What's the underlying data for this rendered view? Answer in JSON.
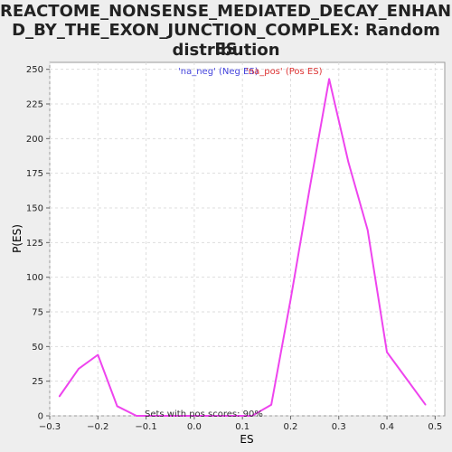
{
  "chart_data": {
    "type": "line",
    "title_line1": "REACTOME_NONSENSE_MEDIATED_DECAY_ENHANCE",
    "title_line2": "D_BY_THE_EXON_JUNCTION_COMPLEX: Random ES",
    "title_line3": "distribution",
    "xlabel": "ES",
    "ylabel": "P(ES)",
    "xlim": [
      -0.3,
      0.52
    ],
    "ylim": [
      0,
      255
    ],
    "x_ticks": [
      -0.3,
      -0.2,
      -0.1,
      0.0,
      0.1,
      0.2,
      0.3,
      0.4,
      0.5
    ],
    "x_tick_labels": [
      "−0.3",
      "−0.2",
      "−0.1",
      "0.0",
      "0.1",
      "0.2",
      "0.3",
      "0.4",
      "0.5"
    ],
    "y_ticks": [
      0,
      25,
      50,
      75,
      100,
      125,
      150,
      175,
      200,
      225,
      250
    ],
    "y_tick_labels": [
      "0",
      "25",
      "50",
      "75",
      "100",
      "125",
      "150",
      "175",
      "200",
      "225",
      "250"
    ],
    "grid": true,
    "legend": [
      {
        "label": "'na_neg' (Neg ES)",
        "color": "#4444dd"
      },
      {
        "label": "'na_pos' (Pos ES)",
        "color": "#dd3333"
      }
    ],
    "annotation": "Sets with pos scores: 90%",
    "series": [
      {
        "color": "#ee44ee",
        "x": [
          -0.28,
          -0.24,
          -0.2,
          -0.16,
          -0.12,
          -0.08,
          -0.04,
          0.0,
          0.04,
          0.08,
          0.12,
          0.16,
          0.2,
          0.24,
          0.28,
          0.32,
          0.36,
          0.4,
          0.44,
          0.48
        ],
        "y": [
          14,
          34,
          44,
          7,
          0,
          0,
          0,
          0,
          0,
          0,
          0,
          8,
          84,
          165,
          243,
          183,
          134,
          46,
          27,
          8
        ]
      }
    ]
  }
}
